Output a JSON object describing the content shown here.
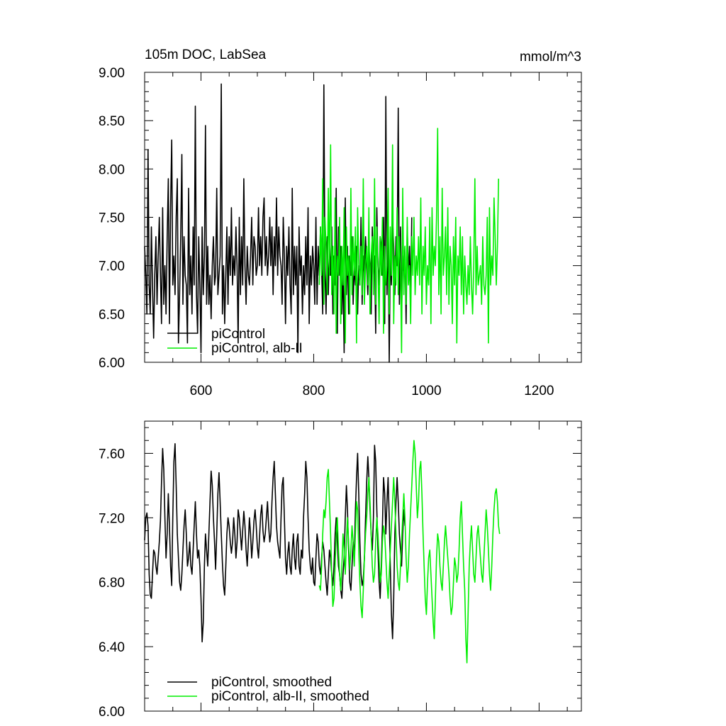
{
  "chart_data": [
    {
      "type": "line",
      "title": "105m DOC, LabSea",
      "units": "mmol/m^3",
      "xlim": [
        500,
        1275
      ],
      "ylim": [
        6.0,
        9.0
      ],
      "x_ticks": [
        600,
        800,
        1000,
        1200
      ],
      "y_ticks": [
        "6.00",
        "6.50",
        "7.00",
        "7.50",
        "8.00",
        "8.50",
        "9.00"
      ],
      "legend_position": "bottom-left",
      "series": [
        {
          "name": "piControl",
          "color": "#000000",
          "x_start": 500,
          "x_step": 2,
          "values": [
            7.2,
            6.9,
            6.5,
            8.2,
            6.8,
            6.5,
            7.4,
            6.8,
            6.25,
            6.9,
            7.3,
            6.6,
            7.1,
            7.5,
            6.9,
            6.4,
            7.6,
            6.6,
            7.0,
            6.5,
            7.3,
            7.9,
            6.4,
            7.6,
            8.3,
            6.8,
            7.1,
            6.7,
            7.5,
            7.9,
            6.2,
            6.7,
            7.3,
            8.15,
            6.6,
            7.3,
            6.9,
            6.8,
            6.2,
            7.8,
            6.7,
            7.1,
            6.5,
            7.4,
            6.8,
            8.65,
            6.7,
            6.3,
            7.3,
            6.8,
            6.1,
            7.4,
            6.7,
            7.1,
            8.45,
            6.6,
            7.2,
            6.6,
            6.9,
            6.45,
            7.0,
            7.3,
            6.8,
            6.9,
            7.8,
            6.7,
            6.9,
            7.1,
            8.88,
            6.5,
            7.0,
            6.4,
            6.9,
            7.4,
            6.6,
            7.3,
            6.9,
            7.6,
            6.8,
            7.1,
            6.9,
            7.4,
            7.0,
            6.2,
            7.5,
            6.7,
            7.3,
            6.8,
            7.9,
            7.0,
            6.6,
            7.2,
            6.9,
            6.8,
            7.1,
            7.5,
            6.8,
            7.3,
            7.2,
            6.9,
            7.0,
            7.6,
            7.0,
            7.3,
            6.9,
            7.5,
            7.7,
            7.0,
            7.3,
            6.9,
            7.1,
            7.5,
            7.0,
            7.4,
            6.7,
            7.3,
            7.0,
            7.7,
            6.9,
            7.4,
            7.1,
            7.0,
            6.6,
            7.5,
            7.1,
            6.4,
            7.2,
            6.9,
            7.4,
            6.8,
            6.5,
            7.8,
            6.7,
            7.2,
            6.8,
            7.2,
            6.1,
            7.4,
            6.9,
            7.1,
            6.5,
            7.0,
            6.7,
            7.3,
            6.8,
            7.6,
            6.4,
            7.1,
            6.8,
            7.2,
            7.0,
            6.6,
            7.5,
            6.6,
            7.2,
            6.9,
            7.4,
            7.0,
            6.5,
            8.87,
            7.0,
            6.5,
            7.3,
            6.7,
            7.2,
            6.9,
            7.4,
            6.5,
            7.1,
            6.8,
            7.8,
            6.3,
            7.4,
            6.9,
            7.2,
            6.5,
            7.0,
            6.1,
            7.7,
            6.7,
            7.2,
            6.5,
            7.1,
            6.9,
            7.3,
            6.6,
            7.0,
            6.8,
            7.2,
            6.5,
            7.0,
            6.8,
            7.5,
            6.6,
            7.1,
            6.9,
            7.3,
            7.0,
            6.7,
            7.2,
            7.0,
            6.5,
            7.4,
            6.9,
            7.1,
            6.3,
            7.6,
            7.0,
            6.8,
            7.3,
            7.2,
            6.9,
            7.5,
            6.4,
            8.75,
            6.7,
            7.4,
            6.0,
            7.1,
            6.8,
            7.5,
            7.2,
            6.7,
            7.3,
            7.0,
            8.63,
            6.6,
            7.4,
            6.5,
            7.1,
            6.9,
            7.2,
            6.4,
            7.4,
            6.9,
            7.2,
            6.7,
            7.5
          ]
        },
        {
          "name": "piControl, alb-II",
          "color": "#00ee00",
          "x_start": 810,
          "x_step": 2,
          "values": [
            6.8,
            7.4,
            6.9,
            7.9,
            6.6,
            7.5,
            7.2,
            6.7,
            7.8,
            6.9,
            8.25,
            6.7,
            7.2,
            6.5,
            7.7,
            6.3,
            7.1,
            6.9,
            7.5,
            6.4,
            7.2,
            6.8,
            7.6,
            6.2,
            7.4,
            6.9,
            7.1,
            6.5,
            7.8,
            6.7,
            7.3,
            6.9,
            7.4,
            6.2,
            7.6,
            7.0,
            6.8,
            7.2,
            6.7,
            7.9,
            6.6,
            7.0,
            7.2,
            6.8,
            7.6,
            6.5,
            7.1,
            7.3,
            6.7,
            7.9,
            6.6,
            7.4,
            7.0,
            6.4,
            7.3,
            6.9,
            7.5,
            6.3,
            7.2,
            6.8,
            7.0,
            7.8,
            6.5,
            7.4,
            6.9,
            8.25,
            6.4,
            7.1,
            6.8,
            7.6,
            6.7,
            7.3,
            7.0,
            6.1,
            7.8,
            6.7,
            7.2,
            6.6,
            7.5,
            6.8,
            7.0,
            6.4,
            7.3,
            6.9,
            7.5,
            6.7,
            7.1,
            6.9,
            7.3,
            6.8,
            7.7,
            6.5,
            7.2,
            6.9,
            7.4,
            6.6,
            7.0,
            6.8,
            7.5,
            6.4,
            7.6,
            6.9,
            7.2,
            7.0,
            7.5,
            8.42,
            6.7,
            7.3,
            6.5,
            7.8,
            6.9,
            7.1,
            7.4,
            6.7,
            7.6,
            6.6,
            7.2,
            7.0,
            6.4,
            7.3,
            6.8,
            7.5,
            6.2,
            7.1,
            6.9,
            7.4,
            6.7,
            7.3,
            6.5,
            7.1,
            6.8,
            6.6,
            7.0,
            6.7,
            7.3,
            6.8,
            6.5,
            7.0,
            7.9,
            6.7,
            7.2,
            6.8,
            6.9,
            7.0,
            6.6,
            7.3,
            6.8,
            6.7,
            6.9,
            7.5,
            6.2,
            7.6,
            6.8,
            7.1,
            6.9,
            7.7,
            7.3,
            6.8,
            7.2,
            7.9
          ]
        }
      ],
      "legend": [
        "piControl",
        "piControl, alb-II"
      ]
    },
    {
      "type": "line",
      "xlim": [
        500,
        1275
      ],
      "ylim": [
        6.0,
        7.8
      ],
      "x_ticks": [
        600,
        800,
        1000,
        1200
      ],
      "y_ticks": [
        "6.00",
        "6.40",
        "6.80",
        "7.20",
        "7.60"
      ],
      "legend_position": "bottom-left",
      "series": [
        {
          "name": "piControl, smoothed",
          "color": "#000000",
          "x_start": 500,
          "x_step": 2,
          "values": [
            7.06,
            7.2,
            7.23,
            7.15,
            6.85,
            6.72,
            6.7,
            6.85,
            7.0,
            6.98,
            6.9,
            6.85,
            6.95,
            7.05,
            7.18,
            7.42,
            7.63,
            7.5,
            7.2,
            6.95,
            7.1,
            7.35,
            7.15,
            6.9,
            6.78,
            7.2,
            7.55,
            7.66,
            7.4,
            7.1,
            6.95,
            6.8,
            6.75,
            6.85,
            7.0,
            7.15,
            7.25,
            7.1,
            6.9,
            6.95,
            7.05,
            6.9,
            6.85,
            7.0,
            7.15,
            7.3,
            7.1,
            6.95,
            7.0,
            6.9,
            6.7,
            6.43,
            6.55,
            6.9,
            7.1,
            7.0,
            6.9,
            7.1,
            7.3,
            7.49,
            7.4,
            7.2,
            7.05,
            6.88,
            7.1,
            7.35,
            7.48,
            7.3,
            7.1,
            6.92,
            6.78,
            6.72,
            6.9,
            7.1,
            7.2,
            7.15,
            7.05,
            6.98,
            7.05,
            7.2,
            7.1,
            6.95,
            7.05,
            7.25,
            7.2,
            7.1,
            7.0,
            7.12,
            7.24,
            7.15,
            7.0,
            6.9,
            7.05,
            7.2,
            7.1,
            6.95,
            7.05,
            7.18,
            7.25,
            7.15,
            7.02,
            6.95,
            7.08,
            7.22,
            7.28,
            7.12,
            7.05,
            7.1,
            7.2,
            7.3,
            7.15,
            7.05,
            7.1,
            7.3,
            7.45,
            7.55,
            7.35,
            7.15,
            7.05,
            7.0,
            6.95,
            7.2,
            7.4,
            7.45,
            7.2,
            6.95,
            6.85,
            6.98,
            7.05,
            6.9,
            6.85,
            7.0,
            7.1,
            6.95,
            6.88,
            7.05,
            7.1,
            6.9,
            6.85,
            7.0,
            6.95,
            7.2,
            7.35,
            7.55,
            7.45,
            7.2,
            7.0,
            6.9,
            6.85,
            6.95,
            6.8,
            6.78,
            6.95,
            7.1,
            7.05,
            6.9,
            6.85,
            6.95,
            7.05,
            7.0,
            6.9,
            6.8,
            6.72,
            6.85,
            7.0,
            6.95,
            6.85,
            6.78,
            6.9,
            7.1,
            7.2,
            7.05,
            6.9,
            6.85,
            6.75,
            6.7,
            6.85,
            6.95,
            7.2,
            7.4,
            7.25,
            7.0,
            6.8,
            6.75,
            6.9,
            7.05,
            6.95,
            7.25,
            7.45,
            7.6,
            7.35,
            7.05,
            6.85,
            6.78,
            6.82,
            6.95,
            7.2,
            7.42,
            7.58,
            7.45,
            7.25,
            7.1,
            7.0,
            7.2,
            7.65,
            7.55,
            7.25,
            7.0,
            6.8,
            6.7,
            6.9,
            7.15,
            7.45,
            7.35,
            7.1,
            7.3,
            7.45,
            7.2,
            6.9,
            6.6,
            6.45,
            6.7,
            7.1,
            7.3,
            7.45,
            7.3,
            7.1,
            7.0,
            6.9,
            7.1,
            7.25,
            7.15
          ]
        },
        {
          "name": "piControl, alb-II, smoothed",
          "color": "#00ee00",
          "x_start": 810,
          "x_step": 2,
          "values": [
            6.78,
            6.75,
            6.9,
            7.1,
            7.25,
            7.2,
            7.3,
            7.45,
            7.5,
            7.3,
            7.1,
            6.85,
            6.65,
            6.7,
            6.9,
            7.1,
            7.2,
            7.0,
            6.85,
            6.75,
            6.9,
            7.1,
            7.0,
            6.85,
            7.05,
            7.2,
            7.05,
            6.88,
            7.0,
            7.15,
            7.05,
            6.9,
            7.1,
            7.3,
            7.25,
            7.0,
            6.8,
            6.65,
            6.58,
            6.75,
            6.95,
            7.1,
            7.2,
            7.35,
            7.45,
            7.3,
            7.1,
            6.9,
            6.8,
            6.85,
            7.05,
            7.2,
            7.1,
            6.95,
            6.8,
            6.85,
            7.05,
            7.15,
            7.1,
            6.95,
            6.8,
            6.7,
            6.85,
            7.0,
            7.15,
            7.3,
            7.45,
            7.3,
            7.1,
            6.9,
            6.8,
            6.75,
            6.9,
            7.05,
            7.2,
            7.35,
            7.2,
            6.95,
            6.8,
            6.9,
            7.1,
            7.25,
            7.4,
            7.55,
            7.68,
            7.6,
            7.4,
            7.2,
            7.3,
            7.5,
            7.55,
            7.35,
            7.1,
            6.9,
            6.7,
            6.6,
            6.8,
            6.95,
            7.0,
            6.85,
            6.7,
            6.55,
            6.45,
            6.7,
            6.95,
            7.1,
            7.05,
            6.9,
            6.8,
            6.75,
            6.9,
            7.05,
            7.15,
            7.05,
            6.95,
            6.85,
            6.7,
            6.6,
            6.65,
            6.8,
            6.95,
            6.9,
            6.8,
            6.85,
            7.0,
            7.2,
            7.3,
            7.1,
            6.9,
            6.75,
            6.45,
            6.3,
            6.6,
            6.9,
            7.05,
            7.15,
            7.0,
            6.85,
            6.8,
            6.95,
            7.1,
            7.15,
            7.05,
            6.95,
            6.85,
            6.8,
            6.95,
            7.1,
            7.25,
            7.15,
            7.0,
            6.85,
            6.75,
            6.9,
            7.1,
            7.25,
            7.35,
            7.38,
            7.3,
            7.15,
            7.1
          ]
        }
      ],
      "legend": [
        "piControl, smoothed",
        "piControl, alb-II, smoothed"
      ]
    }
  ]
}
